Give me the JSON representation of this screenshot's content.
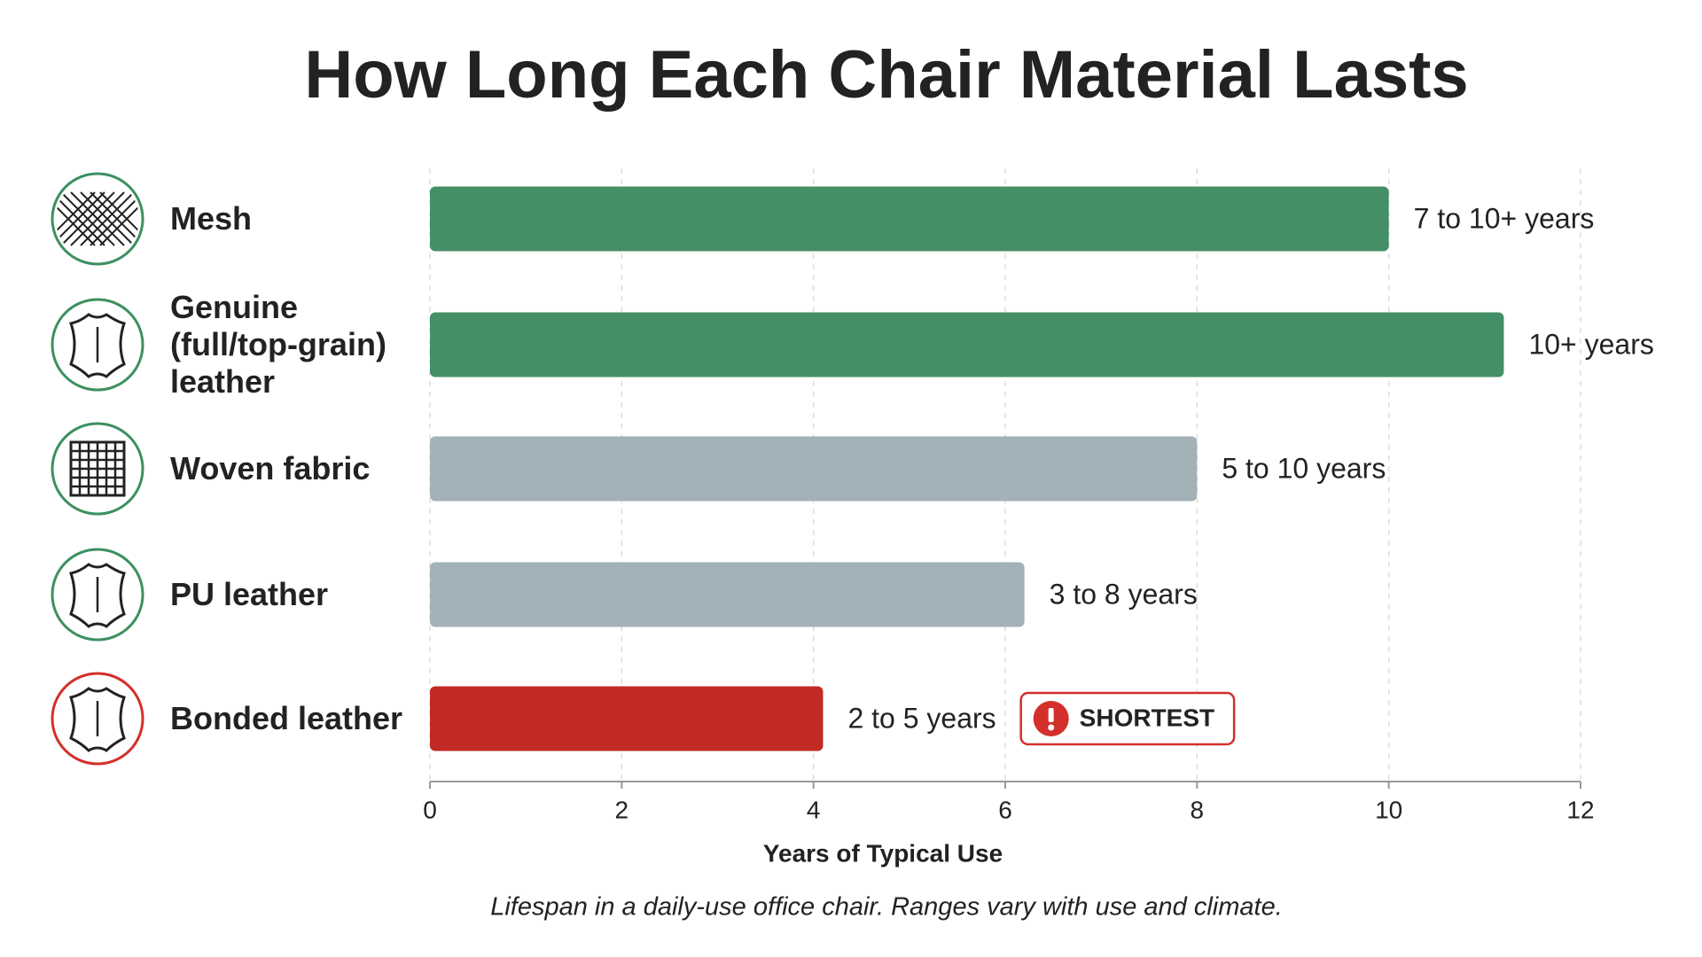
{
  "chart_data": {
    "type": "bar",
    "orientation": "horizontal",
    "title": "How Long Each Chair Material Lasts",
    "categories": [
      "Mesh",
      "Genuine (full/top-grain) leather",
      "Woven fabric",
      "PU leather",
      "Bonded leather"
    ],
    "values": [
      10,
      11.2,
      8,
      6.2,
      4.1
    ],
    "range_labels": [
      "7 to 10+ years",
      "10+ years",
      "5 to 10 years",
      "3 to 8 years",
      "2 to 5 years"
    ],
    "colors": [
      "#448f66",
      "#448f66",
      "#a3b1b9",
      "#a3b1b9",
      "#c12a25"
    ],
    "xlim": [
      0,
      12
    ],
    "xticks": [
      0,
      2,
      4,
      6,
      8,
      10,
      12
    ],
    "grid": true,
    "xlabel": "Years of Typical Use",
    "annotation": {
      "text": "SHORTEST",
      "category_index": 4,
      "color": "#d3302b"
    },
    "footnote": "Lifespan in a daily-use office chair. Ranges vary with use and climate."
  }
}
